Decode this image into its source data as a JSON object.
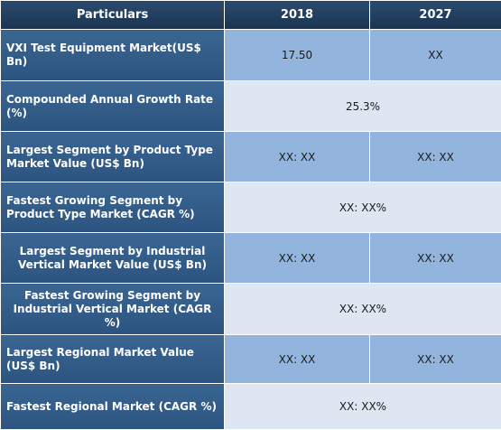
{
  "table": {
    "headers": [
      "Particulars",
      "2018",
      "2027"
    ],
    "rows": [
      {
        "label": "VXI Test Equipment Market(US$ Bn)",
        "v2018": "17.50",
        "v2027": "XX"
      },
      {
        "label": "Compounded Annual Growth Rate (%)",
        "merged": "25.3%"
      },
      {
        "label": "Largest Segment by Product Type Market Value (US$ Bn)",
        "v2018": "XX: XX",
        "v2027": "XX: XX"
      },
      {
        "label": "Fastest Growing Segment by Product Type Market (CAGR %)",
        "merged": "XX: XX%"
      },
      {
        "label": "Largest Segment by Industrial Vertical Market Value (US$ Bn)",
        "v2018": "XX: XX",
        "v2027": "XX: XX"
      },
      {
        "label": "Fastest Growing Segment by Industrial Vertical Market (CAGR %)",
        "merged": "XX: XX%"
      },
      {
        "label": "Largest Regional Market Value (US$ Bn)",
        "v2018": "XX: XX",
        "v2027": "XX: XX"
      },
      {
        "label": "Fastest Regional Market (CAGR %)",
        "merged": "XX: XX%"
      }
    ]
  },
  "colors": {
    "header_bg": "#23415f",
    "label_bg": "#335d8a",
    "cell_blue": "#92b4dd",
    "cell_light": "#dde6f1"
  }
}
